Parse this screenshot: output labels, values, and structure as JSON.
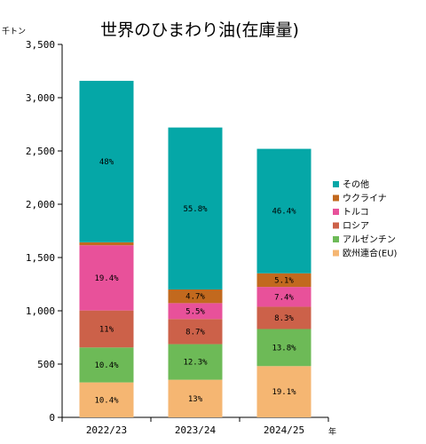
{
  "chart_data": {
    "type": "bar",
    "stacked": true,
    "title": "世界のひまわり油(在庫量)",
    "ylabel": "千トン",
    "xlabel": "年",
    "ylim": [
      0,
      3500
    ],
    "yticks": [
      0,
      500,
      1000,
      1500,
      2000,
      2500,
      3000,
      3500
    ],
    "ytick_labels": [
      "0",
      "500",
      "1,000",
      "1,500",
      "2,000",
      "2,500",
      "3,000",
      "3,500"
    ],
    "grid": false,
    "legend_position": "right",
    "categories": [
      "2022/23",
      "2023/24",
      "2024/25"
    ],
    "series": [
      {
        "name": "欧州連合(EU)",
        "color": "#F5B672",
        "values": [
          328,
          353,
          481
        ],
        "labels": [
          "10.4%",
          "13%",
          "19.1%"
        ]
      },
      {
        "name": "アルゼンチン",
        "color": "#6DBA57",
        "values": [
          328,
          334,
          348
        ],
        "labels": [
          "10.4%",
          "12.3%",
          "13.8%"
        ]
      },
      {
        "name": "ロシア",
        "color": "#CC6149",
        "values": [
          347,
          236,
          209
        ],
        "labels": [
          "11%",
          "8.7%",
          "8.3%"
        ]
      },
      {
        "name": "トルコ",
        "color": "#E8519A",
        "values": [
          612,
          149,
          186
        ],
        "labels": [
          "19.4%",
          "5.5%",
          "7.4%"
        ]
      },
      {
        "name": "ウクライナ",
        "color": "#C2691E",
        "values": [
          28,
          128,
          128
        ],
        "labels": [
          "",
          "4.7%",
          "5.1%"
        ]
      },
      {
        "name": "その他",
        "color": "#05A7A7",
        "values": [
          1515,
          1520,
          1168
        ],
        "labels": [
          "48%",
          "55.8%",
          "46.4%"
        ]
      }
    ]
  }
}
